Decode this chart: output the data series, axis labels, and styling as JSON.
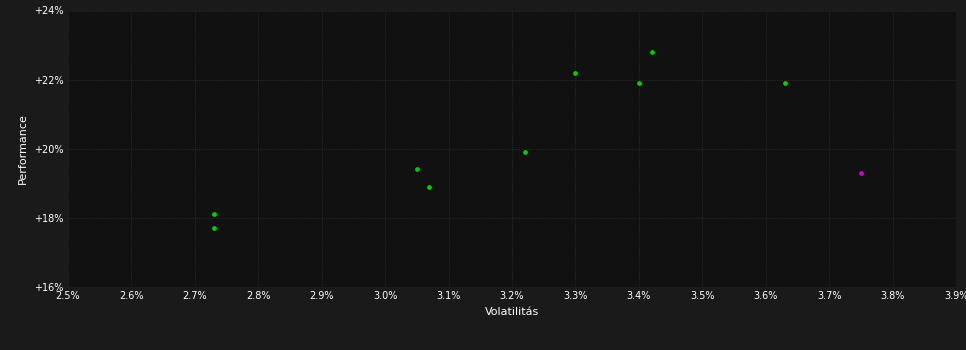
{
  "fig_bg": "#1a1a1a",
  "ax_bg": "#111111",
  "grid_color": "#555555",
  "text_color": "#ffffff",
  "xlabel": "Volatilitás",
  "ylabel": "Performance",
  "xlim": [
    0.025,
    0.039
  ],
  "ylim": [
    0.16,
    0.24
  ],
  "xtick_vals": [
    0.025,
    0.026,
    0.027,
    0.028,
    0.029,
    0.03,
    0.031,
    0.032,
    0.033,
    0.034,
    0.035,
    0.036,
    0.037,
    0.038,
    0.039
  ],
  "ytick_vals": [
    0.16,
    0.18,
    0.2,
    0.22,
    0.24
  ],
  "green_x": [
    0.0273,
    0.0273,
    0.0305,
    0.0307,
    0.0322,
    0.033,
    0.034,
    0.0342,
    0.0363
  ],
  "green_y": [
    0.181,
    0.177,
    0.194,
    0.189,
    0.199,
    0.222,
    0.219,
    0.228,
    0.219
  ],
  "magenta_x": [
    0.0375
  ],
  "magenta_y": [
    0.193
  ],
  "green_color": "#00cc00",
  "magenta_color": "#cc00cc",
  "marker_size": 12,
  "tick_labelsize": 7,
  "xlabel_fontsize": 8,
  "ylabel_fontsize": 8
}
